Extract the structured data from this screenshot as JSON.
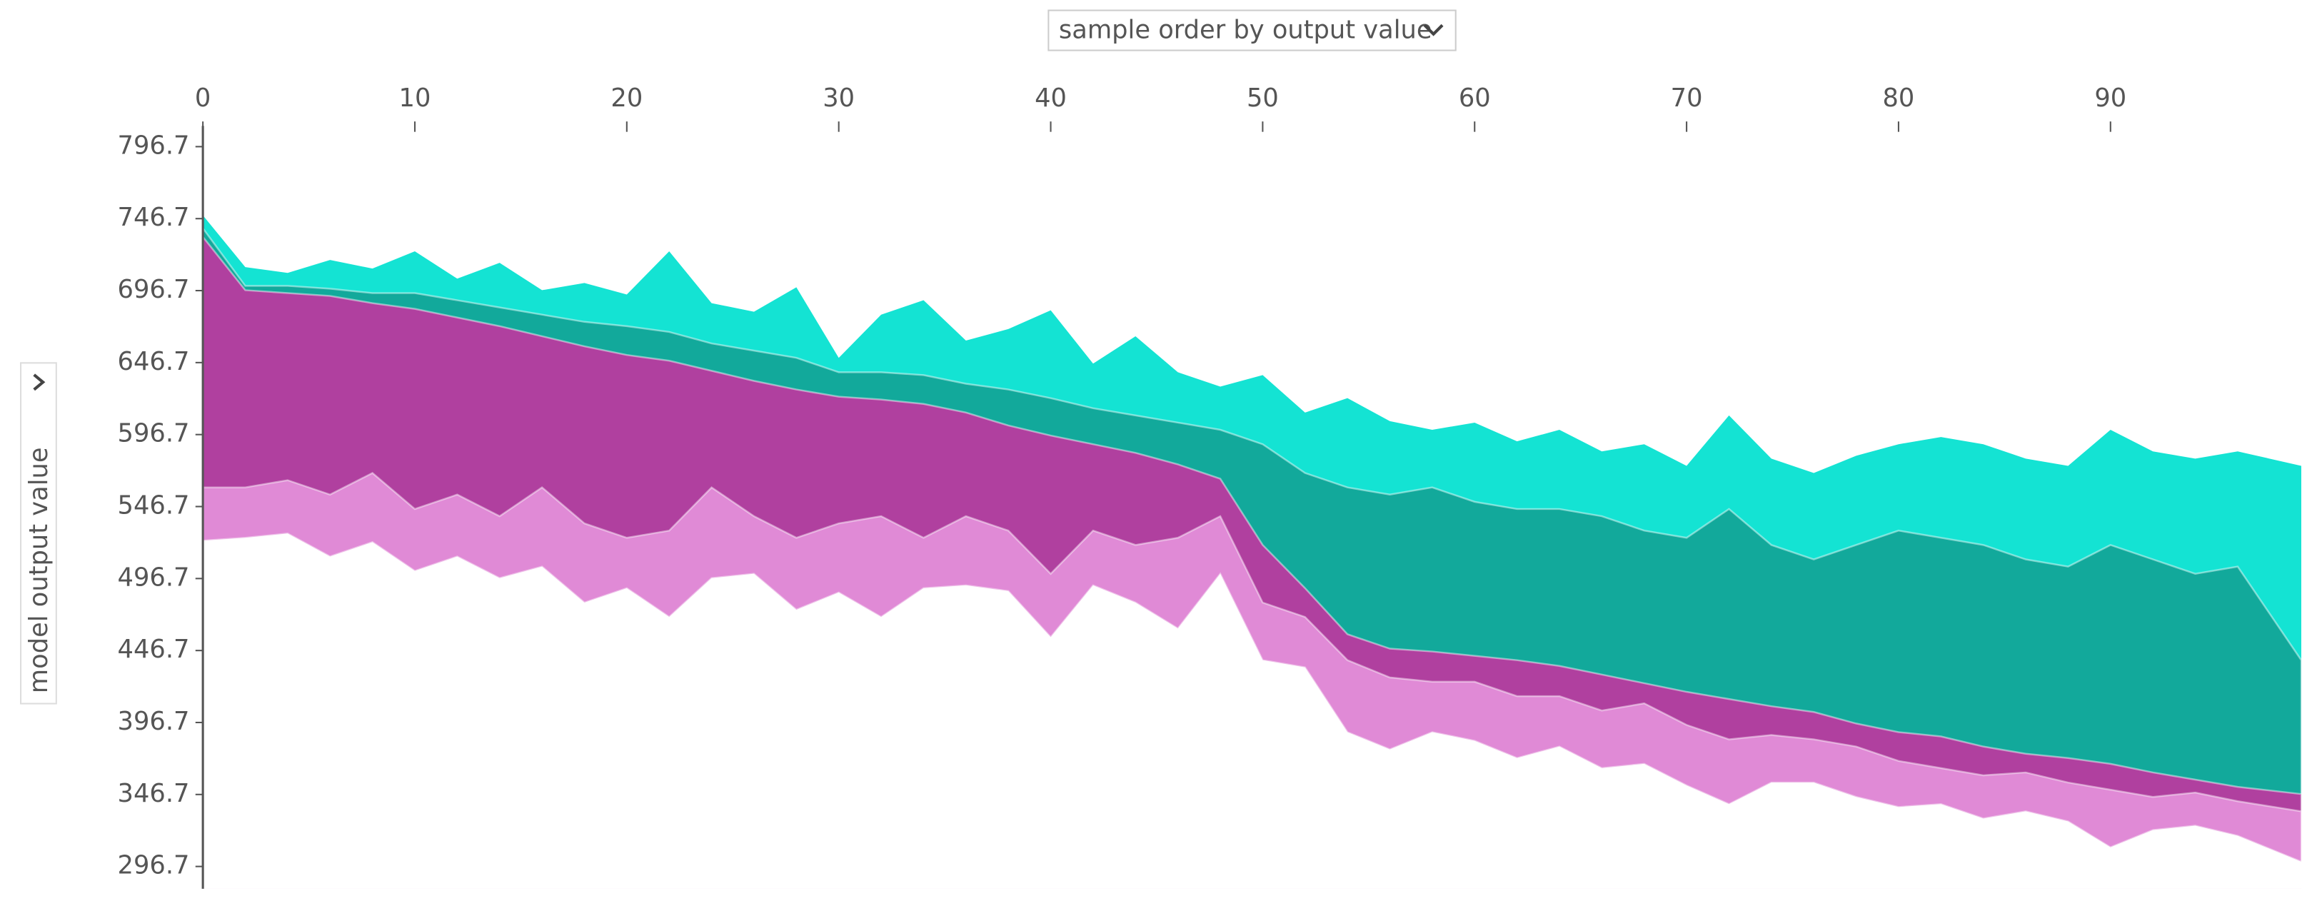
{
  "chart_data": {
    "type": "area",
    "x_control": "sample order by output value",
    "y_label": "model output value",
    "xlim": [
      0,
      99
    ],
    "xticks": [
      0,
      10,
      20,
      30,
      40,
      50,
      60,
      70,
      80,
      90
    ],
    "ylim": [
      281.2,
      811.1
    ],
    "yticks": [
      796.7,
      746.7,
      696.7,
      646.7,
      596.7,
      546.7,
      496.7,
      446.7,
      396.7,
      346.7,
      296.7
    ],
    "x": [
      0,
      2,
      4,
      6,
      8,
      10,
      12,
      14,
      16,
      18,
      20,
      22,
      24,
      26,
      28,
      30,
      32,
      34,
      36,
      38,
      40,
      42,
      44,
      46,
      48,
      50,
      52,
      54,
      56,
      58,
      60,
      62,
      64,
      66,
      68,
      70,
      72,
      74,
      76,
      78,
      80,
      82,
      84,
      86,
      88,
      90,
      92,
      94,
      96,
      99
    ],
    "series": [
      {
        "color": "#14e3d3",
        "values": [
          749,
          713,
          709,
          718,
          712,
          724,
          705,
          716,
          697,
          702,
          694,
          724,
          688,
          682,
          699,
          650,
          680,
          690,
          662,
          670,
          683,
          646,
          665,
          640,
          630,
          638,
          612,
          622,
          606,
          600,
          605,
          592,
          600,
          585,
          590,
          575,
          610,
          580,
          570,
          582,
          590,
          595,
          590,
          580,
          575,
          600,
          585,
          580,
          585,
          575
        ]
      },
      {
        "color": "#12a99b",
        "values": [
          740,
          700,
          700,
          698,
          695,
          695,
          690,
          685,
          680,
          675,
          672,
          668,
          660,
          655,
          650,
          640,
          640,
          638,
          632,
          628,
          622,
          615,
          610,
          605,
          600,
          590,
          570,
          560,
          555,
          560,
          550,
          545,
          545,
          540,
          530,
          525,
          545,
          520,
          510,
          520,
          530,
          525,
          520,
          510,
          505,
          520,
          510,
          500,
          505,
          440
        ]
      },
      {
        "color": "#b0409f",
        "values": [
          734,
          697,
          695,
          693,
          688,
          684,
          678,
          672,
          665,
          658,
          652,
          648,
          641,
          634,
          628,
          623,
          621,
          618,
          612,
          603,
          596,
          590,
          584,
          576,
          566,
          520,
          490,
          458,
          448,
          446,
          443,
          440,
          436,
          430,
          424,
          418,
          413,
          408,
          404,
          396,
          390,
          387,
          380,
          375,
          372,
          368,
          362,
          357,
          352,
          347
        ]
      },
      {
        "color": "#e08ad6",
        "values": [
          560,
          560,
          565,
          555,
          570,
          545,
          555,
          540,
          560,
          535,
          525,
          530,
          560,
          540,
          525,
          535,
          540,
          525,
          540,
          530,
          500,
          530,
          520,
          525,
          540,
          480,
          470,
          440,
          428,
          425,
          425,
          415,
          415,
          405,
          410,
          395,
          385,
          388,
          385,
          380,
          370,
          365,
          360,
          362,
          355,
          350,
          345,
          348,
          342,
          335
        ]
      },
      {
        "color": "#ffffff",
        "values": [
          523,
          525,
          528,
          512,
          522,
          502,
          512,
          497,
          505,
          480,
          490,
          470,
          497,
          500,
          475,
          487,
          470,
          490,
          492,
          488,
          456,
          492,
          480,
          462,
          500,
          440,
          435,
          390,
          378,
          390,
          384,
          372,
          380,
          365,
          368,
          353,
          340,
          355,
          355,
          345,
          338,
          340,
          330,
          335,
          328,
          310,
          322,
          325,
          318,
          300
        ]
      }
    ]
  }
}
